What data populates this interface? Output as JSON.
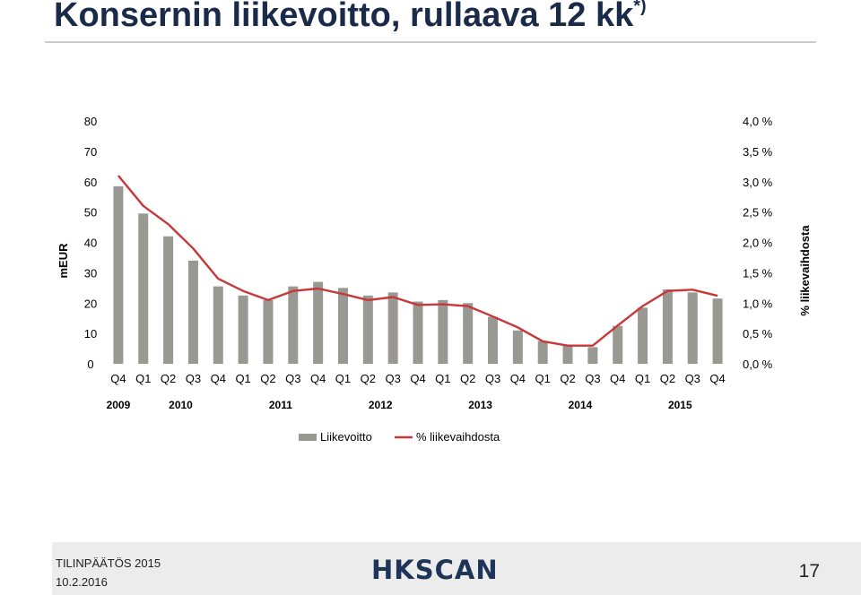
{
  "slide": {
    "title": "Konsernin liikevoitto, rullaava 12 kk",
    "title_note": "*)"
  },
  "chart_data": {
    "type": "bar",
    "categories": [
      "Q4",
      "Q1",
      "Q2",
      "Q3",
      "Q4",
      "Q1",
      "Q2",
      "Q3",
      "Q4",
      "Q1",
      "Q2",
      "Q3",
      "Q4",
      "Q1",
      "Q2",
      "Q3",
      "Q4",
      "Q1",
      "Q2",
      "Q3",
      "Q4",
      "Q1",
      "Q2",
      "Q3",
      "Q4"
    ],
    "year_groups": [
      {
        "label": "2009",
        "start": 0,
        "end": 0
      },
      {
        "label": "2010",
        "start": 1,
        "end": 4
      },
      {
        "label": "2011",
        "start": 5,
        "end": 8
      },
      {
        "label": "2012",
        "start": 9,
        "end": 12
      },
      {
        "label": "2013",
        "start": 13,
        "end": 16
      },
      {
        "label": "2014",
        "start": 17,
        "end": 20
      },
      {
        "label": "2015",
        "start": 21,
        "end": 24
      }
    ],
    "series": [
      {
        "name": "Liikevoitto",
        "type": "bar",
        "axis": "left",
        "color": "#999892",
        "values": [
          58.5,
          49.5,
          42,
          34,
          25.5,
          22.5,
          21,
          25.5,
          27,
          25,
          22.5,
          23.5,
          20.5,
          21,
          20,
          15.5,
          11,
          7.5,
          6,
          5.5,
          12.5,
          18.5,
          24.5,
          23.5,
          21.5
        ]
      },
      {
        "name": "% liikevaihdosta",
        "type": "line",
        "axis": "right",
        "color": "#c8383a",
        "values": [
          3.1,
          2.6,
          2.3,
          1.9,
          1.4,
          1.2,
          1.05,
          1.2,
          1.24,
          1.15,
          1.05,
          1.1,
          0.97,
          0.98,
          0.95,
          0.78,
          0.6,
          0.37,
          0.3,
          0.3,
          0.63,
          0.95,
          1.2,
          1.22,
          1.12
        ]
      }
    ],
    "ylabel": "mEUR",
    "ylim": [
      0,
      80
    ],
    "yticks": [
      "0",
      "10",
      "20",
      "30",
      "40",
      "50",
      "60",
      "70",
      "80"
    ],
    "y2label": "% liikevaihdosta",
    "y2lim": [
      0,
      4
    ],
    "y2ticks": [
      "0,0 %",
      "0,5 %",
      "1,0 %",
      "1,5 %",
      "2,0 %",
      "2,5 %",
      "3,0 %",
      "3,5 %",
      "4,0 %"
    ],
    "grid": false,
    "legend": "bottom"
  },
  "footer": {
    "report": "TILINPÄÄTÖS 2015",
    "date": "10.2.2016",
    "logo": "HKSCAN",
    "page": "17"
  }
}
